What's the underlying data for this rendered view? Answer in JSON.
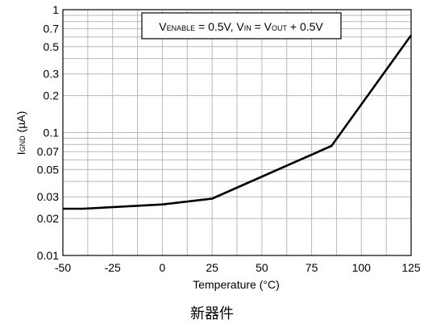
{
  "chart_data": {
    "type": "line",
    "x_scale": "linear",
    "y_scale": "log",
    "xlim": [
      -50,
      125
    ],
    "ylim": [
      0.01,
      1
    ],
    "grid": true,
    "x_ticks": [
      -50,
      -25,
      0,
      25,
      50,
      75,
      100,
      125
    ],
    "x_tick_labels": [
      "-50",
      "-25",
      "0",
      "25",
      "50",
      "75",
      "100",
      "125"
    ],
    "y_ticks": [
      0.01,
      0.02,
      0.03,
      0.05,
      0.07,
      0.1,
      0.2,
      0.3,
      0.5,
      0.7,
      1
    ],
    "y_tick_labels": [
      "0.01",
      "0.02",
      "0.03",
      "0.05",
      "0.07",
      "0.1",
      "0.2",
      "0.3",
      "0.5",
      "0.7",
      "1"
    ],
    "xlabel_text": "Temperature (°C)",
    "ylabel": {
      "main": "I",
      "sub": "GND",
      "unit": " (µA)"
    },
    "annotation": {
      "v1": "V",
      "s1": "ENABLE",
      "t1": " = 0.5V, V",
      "s2": "IN",
      "t2": " = V",
      "s3": "OUT",
      "t3": " + 0.5V"
    },
    "series": [
      {
        "x": [
          -50,
          -40,
          0,
          25,
          85,
          125
        ],
        "y": [
          0.024,
          0.024,
          0.026,
          0.029,
          0.078,
          0.62
        ]
      }
    ]
  },
  "caption": "新器件"
}
